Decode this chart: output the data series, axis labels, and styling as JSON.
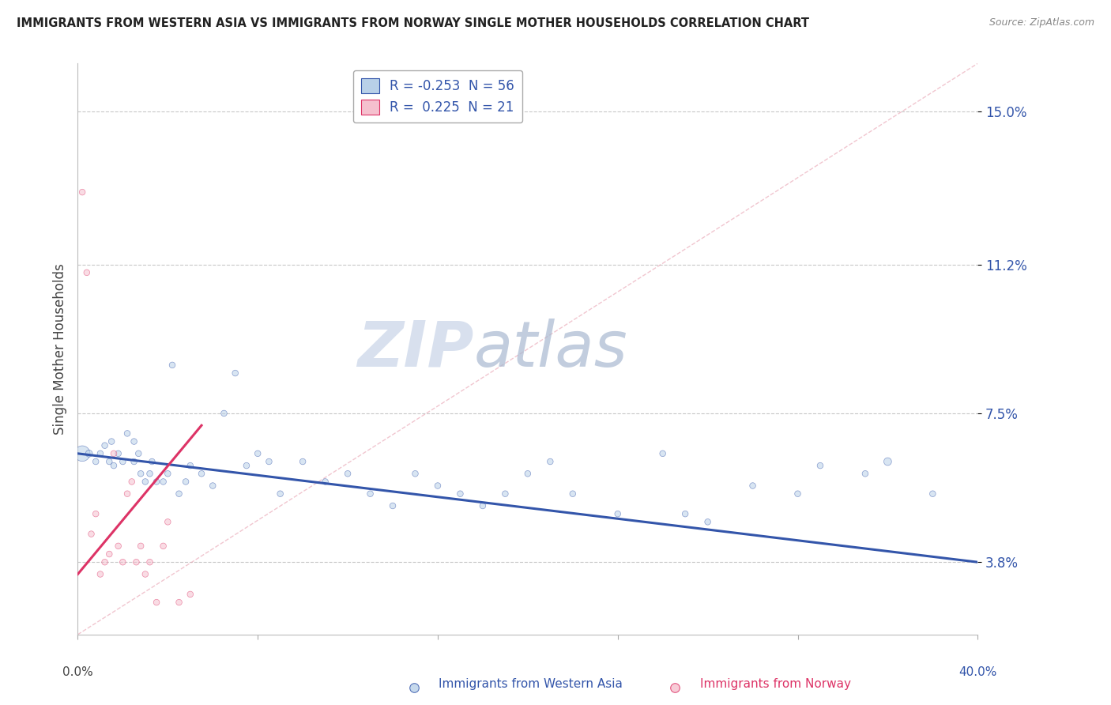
{
  "title": "IMMIGRANTS FROM WESTERN ASIA VS IMMIGRANTS FROM NORWAY SINGLE MOTHER HOUSEHOLDS CORRELATION CHART",
  "source": "Source: ZipAtlas.com",
  "ylabel": "Single Mother Households",
  "y_ticks_pct": [
    3.8,
    7.5,
    11.2,
    15.0
  ],
  "y_tick_labels": [
    "3.8%",
    "7.5%",
    "11.2%",
    "15.0%"
  ],
  "xlim": [
    0.0,
    0.4
  ],
  "ylim": [
    0.02,
    0.162
  ],
  "legend1_label": "R = -0.253  N = 56",
  "legend2_label": "R =  0.225  N = 21",
  "legend1_color": "#b8d0e8",
  "legend2_color": "#f5c0ce",
  "line1_color": "#3355aa",
  "line2_color": "#dd3366",
  "watermark_color": "#dde4f0",
  "blue_x": [
    0.002,
    0.005,
    0.008,
    0.01,
    0.012,
    0.014,
    0.015,
    0.016,
    0.018,
    0.02,
    0.022,
    0.025,
    0.025,
    0.027,
    0.028,
    0.03,
    0.032,
    0.033,
    0.035,
    0.038,
    0.04,
    0.042,
    0.045,
    0.048,
    0.05,
    0.055,
    0.06,
    0.065,
    0.07,
    0.075,
    0.08,
    0.085,
    0.09,
    0.1,
    0.11,
    0.12,
    0.13,
    0.14,
    0.15,
    0.16,
    0.17,
    0.18,
    0.19,
    0.2,
    0.21,
    0.22,
    0.24,
    0.26,
    0.27,
    0.28,
    0.3,
    0.32,
    0.33,
    0.35,
    0.36,
    0.38
  ],
  "blue_y": [
    0.065,
    0.065,
    0.063,
    0.065,
    0.067,
    0.063,
    0.068,
    0.062,
    0.065,
    0.063,
    0.07,
    0.063,
    0.068,
    0.065,
    0.06,
    0.058,
    0.06,
    0.063,
    0.058,
    0.058,
    0.06,
    0.087,
    0.055,
    0.058,
    0.062,
    0.06,
    0.057,
    0.075,
    0.085,
    0.062,
    0.065,
    0.063,
    0.055,
    0.063,
    0.058,
    0.06,
    0.055,
    0.052,
    0.06,
    0.057,
    0.055,
    0.052,
    0.055,
    0.06,
    0.063,
    0.055,
    0.05,
    0.065,
    0.05,
    0.048,
    0.057,
    0.055,
    0.062,
    0.06,
    0.063,
    0.055
  ],
  "blue_size": [
    200,
    40,
    30,
    30,
    30,
    30,
    30,
    30,
    30,
    30,
    30,
    30,
    30,
    30,
    30,
    30,
    30,
    30,
    30,
    30,
    30,
    30,
    30,
    30,
    30,
    30,
    30,
    30,
    30,
    30,
    30,
    30,
    30,
    30,
    30,
    30,
    30,
    30,
    30,
    30,
    30,
    30,
    30,
    30,
    30,
    30,
    30,
    30,
    30,
    30,
    30,
    30,
    30,
    30,
    50,
    30
  ],
  "pink_x": [
    0.002,
    0.004,
    0.006,
    0.008,
    0.01,
    0.012,
    0.014,
    0.016,
    0.018,
    0.02,
    0.022,
    0.024,
    0.026,
    0.028,
    0.03,
    0.032,
    0.035,
    0.038,
    0.04,
    0.045,
    0.05
  ],
  "pink_y": [
    0.13,
    0.11,
    0.045,
    0.05,
    0.035,
    0.038,
    0.04,
    0.065,
    0.042,
    0.038,
    0.055,
    0.058,
    0.038,
    0.042,
    0.035,
    0.038,
    0.028,
    0.042,
    0.048,
    0.028,
    0.03
  ],
  "pink_size": [
    30,
    30,
    30,
    30,
    30,
    30,
    30,
    30,
    30,
    30,
    30,
    30,
    30,
    30,
    30,
    30,
    30,
    30,
    30,
    30,
    30
  ],
  "blue_line_x": [
    0.0,
    0.4
  ],
  "blue_line_y": [
    0.065,
    0.038
  ],
  "pink_line_x": [
    0.0,
    0.055
  ],
  "pink_line_y": [
    0.035,
    0.072
  ],
  "diag_line_x": [
    0.0,
    0.4
  ],
  "diag_line_y": [
    0.02,
    0.162
  ],
  "grid_color": "#c8c8c8",
  "dot_alpha": 0.55,
  "background_color": "#ffffff"
}
